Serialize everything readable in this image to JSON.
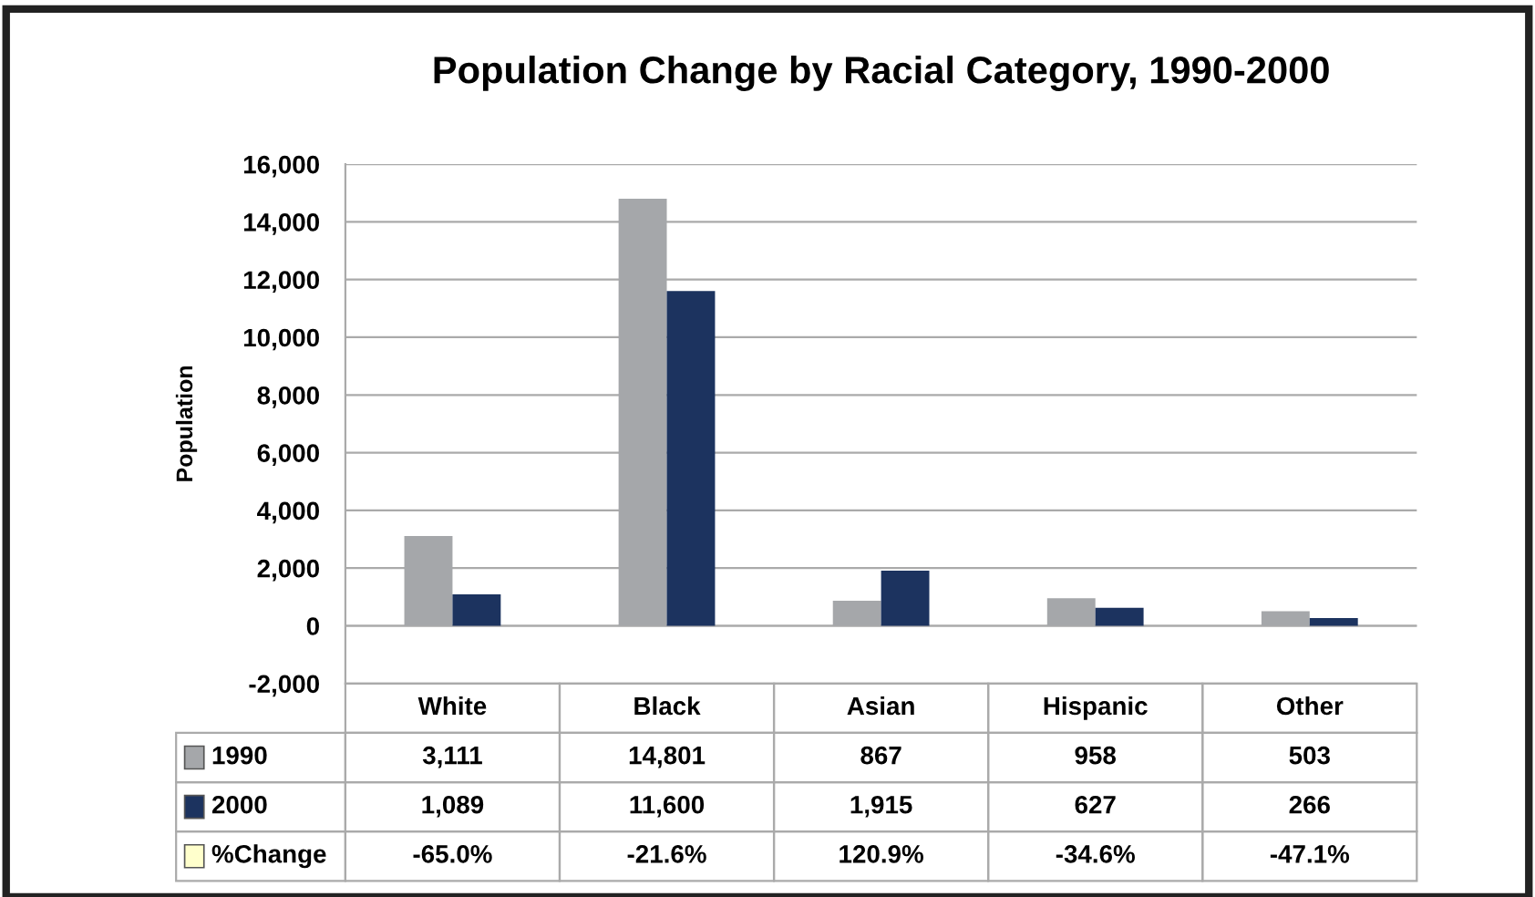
{
  "chart_data": {
    "type": "bar",
    "title": "Population Change by Racial Category, 1990-2000",
    "ylabel": "Population",
    "categories": [
      "White",
      "Black",
      "Asian",
      "Hispanic",
      "Other"
    ],
    "series": [
      {
        "name": "1990",
        "color": "#a5a7aa",
        "values": [
          3111,
          14801,
          867,
          958,
          503
        ],
        "value_labels": [
          "3,111",
          "14,801",
          "867",
          "958",
          "503"
        ]
      },
      {
        "name": "2000",
        "color": "#1c335f",
        "values": [
          1089,
          11600,
          1915,
          627,
          266
        ],
        "value_labels": [
          "1,089",
          "11,600",
          "1,915",
          "627",
          "266"
        ]
      },
      {
        "name": "%Change",
        "color": "#ffffcc",
        "values": [
          null,
          null,
          null,
          null,
          null
        ],
        "value_labels": [
          "-65.0%",
          "-21.6%",
          "120.9%",
          "-34.6%",
          "-47.1%"
        ]
      }
    ],
    "ylim": [
      -2000,
      16000
    ],
    "yticks": [
      {
        "value": -2000,
        "label": "-2,000"
      },
      0,
      {
        "value": 2000,
        "label": "2,000"
      },
      {
        "value": 4000,
        "label": "4,000"
      },
      {
        "value": 6000,
        "label": "6,000"
      },
      {
        "value": 8000,
        "label": "8,000"
      },
      {
        "value": 10000,
        "label": "10,000"
      },
      {
        "value": 12000,
        "label": "12,000"
      },
      {
        "value": 14000,
        "label": "14,000"
      },
      {
        "value": 16000,
        "label": "16,000"
      }
    ],
    "grid": "y",
    "legend": "bottom left"
  }
}
